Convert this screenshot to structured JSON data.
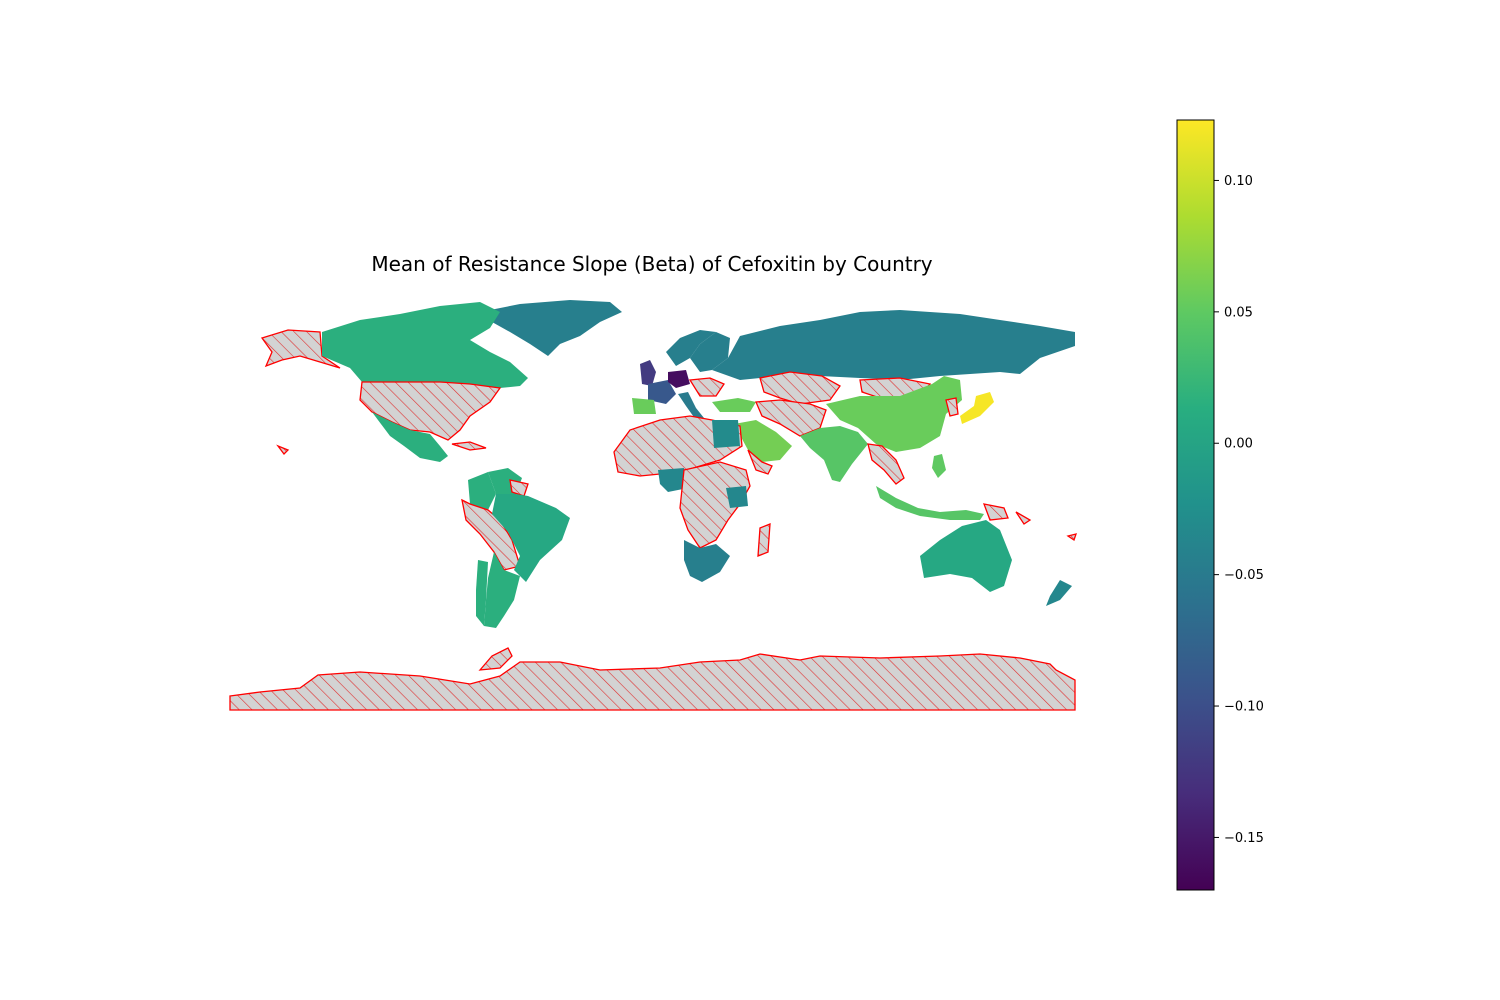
{
  "chart_data": {
    "type": "choropleth",
    "title": "Mean of Resistance Slope (Beta) of Cefoxitin by Country",
    "colormap": "viridis",
    "missing_style": {
      "fill": "#d3d3d3",
      "edge": "#ff0000",
      "hatch": "///"
    },
    "colorbar": {
      "range": [
        -0.17,
        0.123
      ],
      "ticks": [
        0.1,
        0.05,
        0.0,
        -0.05,
        -0.1,
        -0.15
      ],
      "tick_labels": [
        "0.10",
        "0.05",
        "0.00",
        "−0.05",
        "−0.10",
        "−0.15"
      ]
    },
    "countries": [
      {
        "name": "Canada",
        "value": 0.015
      },
      {
        "name": "Greenland",
        "value": -0.045
      },
      {
        "name": "Mexico",
        "value": 0.015
      },
      {
        "name": "Brazil",
        "value": 0.005
      },
      {
        "name": "Colombia",
        "value": 0.015
      },
      {
        "name": "Venezuela",
        "value": 0.015
      },
      {
        "name": "Chile",
        "value": 0.015
      },
      {
        "name": "Argentina",
        "value": 0.015
      },
      {
        "name": "Russia",
        "value": -0.045
      },
      {
        "name": "Norway",
        "value": -0.045
      },
      {
        "name": "Sweden",
        "value": -0.045
      },
      {
        "name": "Finland",
        "value": -0.045
      },
      {
        "name": "United Kingdom",
        "value": -0.12
      },
      {
        "name": "France",
        "value": -0.09
      },
      {
        "name": "Germany",
        "value": -0.16
      },
      {
        "name": "Italy",
        "value": -0.05
      },
      {
        "name": "Spain",
        "value": 0.055
      },
      {
        "name": "Turkey",
        "value": 0.055
      },
      {
        "name": "Saudi Arabia",
        "value": 0.06
      },
      {
        "name": "Egypt",
        "value": -0.03
      },
      {
        "name": "Nigeria",
        "value": -0.035
      },
      {
        "name": "Kenya",
        "value": -0.035
      },
      {
        "name": "South Africa",
        "value": -0.045
      },
      {
        "name": "China",
        "value": 0.055
      },
      {
        "name": "India",
        "value": 0.045
      },
      {
        "name": "Indonesia",
        "value": 0.045
      },
      {
        "name": "Philippines",
        "value": 0.05
      },
      {
        "name": "Japan",
        "value": 0.12
      },
      {
        "name": "Australia",
        "value": 0.005
      },
      {
        "name": "New Zealand",
        "value": -0.035
      }
    ]
  }
}
